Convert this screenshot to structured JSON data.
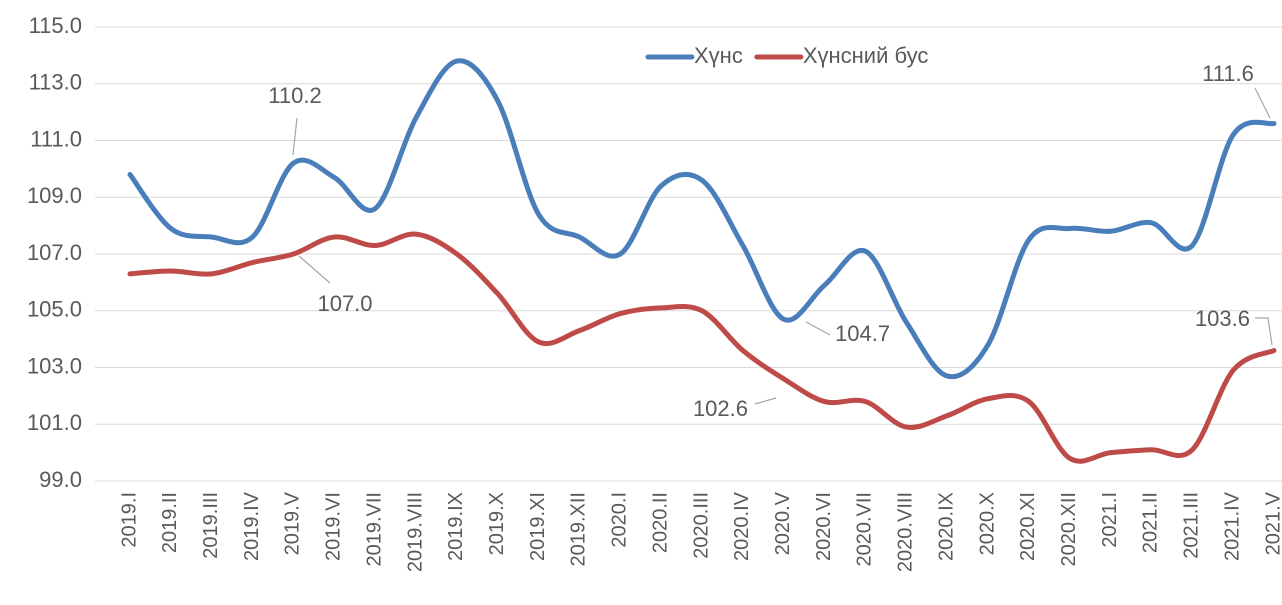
{
  "chart_data": {
    "type": "line",
    "categories": [
      "2019.I",
      "2019.II",
      "2019.III",
      "2019.IV",
      "2019.V",
      "2019.VI",
      "2019.VII",
      "2019.VIII",
      "2019.IX",
      "2019.X",
      "2019.XI",
      "2019.XII",
      "2020.I",
      "2020.II",
      "2020.III",
      "2020.IV",
      "2020.V",
      "2020.VI",
      "2020.VII",
      "2020.VIII",
      "2020.IX",
      "2020.X",
      "2020.XI",
      "2020.XII",
      "2021.I",
      "2021.II",
      "2021.III",
      "2021.IV",
      "2021.V"
    ],
    "series": [
      {
        "name": "Хүнс",
        "color": "#4a7ebb",
        "values": [
          109.8,
          107.9,
          107.6,
          107.6,
          110.2,
          109.7,
          108.6,
          111.8,
          113.8,
          112.4,
          108.4,
          107.6,
          107.0,
          109.4,
          109.6,
          107.3,
          104.7,
          105.9,
          107.1,
          104.6,
          102.7,
          103.8,
          107.5,
          107.9,
          107.8,
          108.1,
          107.3,
          111.2,
          111.6
        ],
        "value_labels": [
          null,
          null,
          null,
          null,
          "110.2",
          null,
          null,
          null,
          null,
          null,
          null,
          null,
          null,
          null,
          null,
          null,
          "104.7",
          null,
          null,
          null,
          null,
          null,
          null,
          null,
          null,
          null,
          null,
          null,
          "111.6"
        ]
      },
      {
        "name": "Хүнсний бус",
        "color": "#be4b48",
        "values": [
          106.3,
          106.4,
          106.3,
          106.7,
          107.0,
          107.6,
          107.3,
          107.7,
          107.0,
          105.6,
          103.9,
          104.3,
          104.9,
          105.1,
          105.0,
          103.6,
          102.6,
          101.8,
          101.8,
          100.9,
          101.3,
          101.9,
          101.8,
          99.8,
          100.0,
          100.1,
          100.1,
          102.9,
          103.6
        ],
        "value_labels": [
          null,
          null,
          null,
          null,
          "107.0",
          null,
          null,
          null,
          null,
          null,
          null,
          null,
          null,
          null,
          null,
          null,
          "102.6",
          null,
          null,
          null,
          null,
          null,
          null,
          null,
          null,
          null,
          null,
          null,
          "103.6"
        ]
      }
    ],
    "ylim": [
      99,
      115
    ],
    "yticks": [
      {
        "value": 99,
        "label": "99.0"
      },
      {
        "value": 101,
        "label": "101.0"
      },
      {
        "value": 103,
        "label": "103.0"
      },
      {
        "value": 105,
        "label": "105.0"
      },
      {
        "value": 107,
        "label": "107.0"
      },
      {
        "value": 109,
        "label": "109.0"
      },
      {
        "value": 111,
        "label": "111.0"
      },
      {
        "value": 113,
        "label": "113.0"
      },
      {
        "value": 115,
        "label": "115.0"
      }
    ],
    "grid": true,
    "legend": "top"
  }
}
